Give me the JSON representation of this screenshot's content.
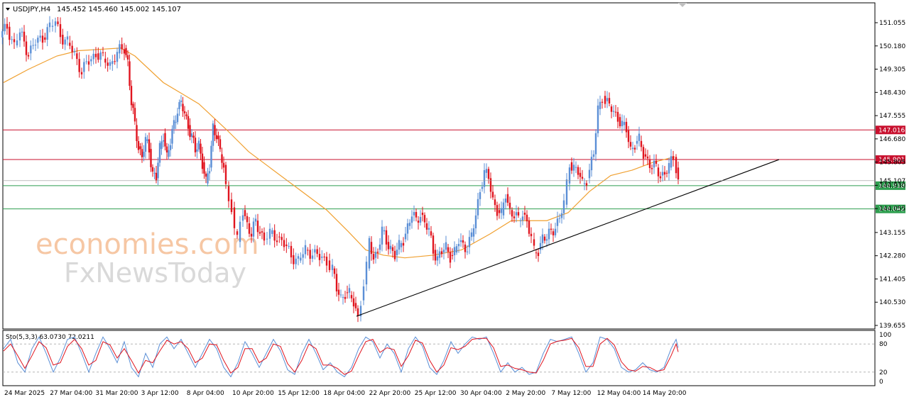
{
  "header": {
    "symbol": "USDJPY,H4",
    "ohlc": "145.452 145.460 145.002 145.107"
  },
  "watermark": {
    "line1": "economies.com",
    "line2": "FxNewsToday"
  },
  "price_axis_ticks": [
    "151.055",
    "150.180",
    "149.305",
    "148.430",
    "147.555",
    "146.680",
    "145.805",
    "144.930",
    "144.055",
    "143.155",
    "142.280",
    "141.405",
    "140.530",
    "139.655"
  ],
  "time_axis_ticks": [
    "24 Mar 2025",
    "27 Mar 04:00",
    "31 Mar 20:00",
    "3 Apr 12:00",
    "8 Apr 04:00",
    "10 Apr 20:00",
    "15 Apr 12:00",
    "18 Apr 04:00",
    "22 Apr 20:00",
    "25 Apr 12:00",
    "30 Apr 04:00",
    "2 May 20:00",
    "7 May 12:00",
    "12 May 04:00",
    "14 May 20:00"
  ],
  "levels": [
    {
      "label": "147.016",
      "value": 147.016,
      "color": "#c8102e"
    },
    {
      "label": "145.901",
      "value": 145.901,
      "color": "#c8102e"
    },
    {
      "label": "144.918",
      "value": 144.918,
      "color": "#2e9e4f"
    },
    {
      "label": "144.042",
      "value": 144.042,
      "color": "#2e9e4f"
    }
  ],
  "current_price": {
    "label": "145.107",
    "value": 145.107
  },
  "stochastic": {
    "label": "Sto(5,3,3) 63.0730 72.0211",
    "scale": [
      "100",
      "80",
      "20",
      "0"
    ]
  },
  "colors": {
    "bull": "#5b8fd6",
    "bear": "#e0141e",
    "ma": "#f0a030",
    "trend": "#000000",
    "k": "#5b8fd6",
    "d": "#e0141e"
  },
  "chart_data": {
    "type": "line",
    "title": "USDJPY,H4",
    "ylim": [
      139.655,
      151.6
    ],
    "close_path": [
      [
        0,
        150.5
      ],
      [
        10,
        150.9
      ],
      [
        20,
        150.2
      ],
      [
        28,
        150.7
      ],
      [
        40,
        149.9
      ],
      [
        50,
        150.3
      ],
      [
        60,
        150.5
      ],
      [
        70,
        150.9
      ],
      [
        78,
        151.1
      ],
      [
        85,
        150.6
      ],
      [
        95,
        150.3
      ],
      [
        105,
        149.9
      ],
      [
        115,
        149.2
      ],
      [
        125,
        149.6
      ],
      [
        135,
        149.9
      ],
      [
        145,
        149.7
      ],
      [
        155,
        149.5
      ],
      [
        165,
        149.9
      ],
      [
        175,
        150.1
      ],
      [
        180,
        149.6
      ],
      [
        185,
        148.0
      ],
      [
        190,
        147.2
      ],
      [
        195,
        146.4
      ],
      [
        200,
        146.0
      ],
      [
        205,
        146.6
      ],
      [
        210,
        146.3
      ],
      [
        215,
        145.4
      ],
      [
        220,
        145.2
      ],
      [
        225,
        146.3
      ],
      [
        230,
        146.9
      ],
      [
        235,
        146.0
      ],
      [
        240,
        146.5
      ],
      [
        245,
        147.3
      ],
      [
        250,
        147.8
      ],
      [
        255,
        148.0
      ],
      [
        260,
        147.6
      ],
      [
        265,
        147.2
      ],
      [
        270,
        146.8
      ],
      [
        275,
        146.2
      ],
      [
        280,
        146.5
      ],
      [
        285,
        145.8
      ],
      [
        290,
        145.0
      ],
      [
        295,
        145.6
      ],
      [
        300,
        147.2
      ],
      [
        305,
        146.8
      ],
      [
        310,
        146.1
      ],
      [
        315,
        145.7
      ],
      [
        318,
        144.9
      ],
      [
        322,
        144.4
      ],
      [
        326,
        144.1
      ],
      [
        330,
        143.2
      ],
      [
        334,
        142.8
      ],
      [
        338,
        143.6
      ],
      [
        342,
        144.0
      ],
      [
        348,
        143.5
      ],
      [
        354,
        143.0
      ],
      [
        360,
        143.6
      ],
      [
        366,
        143.2
      ],
      [
        372,
        142.9
      ],
      [
        380,
        143.1
      ],
      [
        390,
        143.0
      ],
      [
        400,
        142.7
      ],
      [
        410,
        142.3
      ],
      [
        420,
        142.1
      ],
      [
        430,
        142.5
      ],
      [
        440,
        142.4
      ],
      [
        450,
        142.2
      ],
      [
        460,
        142.1
      ],
      [
        468,
        141.8
      ],
      [
        474,
        141.0
      ],
      [
        480,
        140.7
      ],
      [
        486,
        140.9
      ],
      [
        492,
        140.8
      ],
      [
        498,
        140.5
      ],
      [
        504,
        140.0
      ],
      [
        508,
        140.6
      ],
      [
        512,
        141.2
      ],
      [
        516,
        141.8
      ],
      [
        520,
        142.8
      ],
      [
        526,
        142.2
      ],
      [
        532,
        142.5
      ],
      [
        538,
        143.2
      ],
      [
        544,
        142.8
      ],
      [
        550,
        142.6
      ],
      [
        556,
        142.3
      ],
      [
        562,
        142.6
      ],
      [
        568,
        142.9
      ],
      [
        574,
        143.4
      ],
      [
        580,
        143.8
      ],
      [
        586,
        143.6
      ],
      [
        592,
        143.9
      ],
      [
        598,
        143.5
      ],
      [
        604,
        143.2
      ],
      [
        610,
        142.5
      ],
      [
        616,
        142.2
      ],
      [
        622,
        142.4
      ],
      [
        628,
        142.6
      ],
      [
        634,
        142.3
      ],
      [
        640,
        142.4
      ],
      [
        646,
        142.8
      ],
      [
        652,
        142.7
      ],
      [
        658,
        142.6
      ],
      [
        664,
        143.0
      ],
      [
        670,
        143.8
      ],
      [
        676,
        144.8
      ],
      [
        682,
        145.4
      ],
      [
        688,
        145.2
      ],
      [
        694,
        144.4
      ],
      [
        700,
        144.0
      ],
      [
        706,
        143.8
      ],
      [
        712,
        144.6
      ],
      [
        718,
        144.0
      ],
      [
        724,
        143.8
      ],
      [
        730,
        143.6
      ],
      [
        736,
        143.9
      ],
      [
        742,
        143.6
      ],
      [
        748,
        142.9
      ],
      [
        752,
        142.4
      ],
      [
        758,
        142.5
      ],
      [
        764,
        143.0
      ],
      [
        770,
        142.9
      ],
      [
        776,
        143.2
      ],
      [
        782,
        143.4
      ],
      [
        788,
        143.7
      ],
      [
        794,
        144.2
      ],
      [
        798,
        145.0
      ],
      [
        802,
        145.8
      ],
      [
        808,
        145.6
      ],
      [
        814,
        145.4
      ],
      [
        820,
        145.0
      ],
      [
        826,
        145.2
      ],
      [
        830,
        145.5
      ],
      [
        836,
        146.1
      ],
      [
        842,
        147.8
      ],
      [
        848,
        148.3
      ],
      [
        852,
        148.1
      ],
      [
        858,
        147.9
      ],
      [
        864,
        147.7
      ],
      [
        870,
        147.5
      ],
      [
        876,
        147.2
      ],
      [
        882,
        147.0
      ],
      [
        888,
        146.3
      ],
      [
        894,
        146.5
      ],
      [
        900,
        146.6
      ],
      [
        906,
        146.1
      ],
      [
        912,
        145.9
      ],
      [
        918,
        145.6
      ],
      [
        924,
        145.6
      ],
      [
        930,
        145.3
      ],
      [
        936,
        145.4
      ],
      [
        942,
        145.6
      ],
      [
        948,
        146.0
      ],
      [
        952,
        145.6
      ],
      [
        955,
        145.107
      ]
    ],
    "ma_path": [
      [
        5,
        148.8
      ],
      [
        40,
        149.3
      ],
      [
        80,
        149.8
      ],
      [
        110,
        150.0
      ],
      [
        170,
        150.1
      ],
      [
        190,
        149.8
      ],
      [
        230,
        148.8
      ],
      [
        280,
        148.0
      ],
      [
        320,
        147.0
      ],
      [
        350,
        146.2
      ],
      [
        380,
        145.6
      ],
      [
        420,
        144.8
      ],
      [
        460,
        144.0
      ],
      [
        490,
        143.2
      ],
      [
        515,
        142.5
      ],
      [
        540,
        142.3
      ],
      [
        570,
        142.2
      ],
      [
        610,
        142.3
      ],
      [
        650,
        142.5
      ],
      [
        690,
        143.1
      ],
      [
        720,
        143.6
      ],
      [
        745,
        143.6
      ],
      [
        770,
        143.6
      ],
      [
        800,
        143.9
      ],
      [
        830,
        144.7
      ],
      [
        860,
        145.3
      ],
      [
        890,
        145.5
      ],
      [
        920,
        145.8
      ],
      [
        950,
        146.0
      ]
    ],
    "trendline": [
      [
        502,
        140.0
      ],
      [
        1097,
        145.901
      ]
    ],
    "stoch_k": [
      [
        5,
        70
      ],
      [
        15,
        90
      ],
      [
        25,
        40
      ],
      [
        35,
        20
      ],
      [
        45,
        70
      ],
      [
        55,
        95
      ],
      [
        65,
        60
      ],
      [
        75,
        20
      ],
      [
        85,
        50
      ],
      [
        95,
        90
      ],
      [
        105,
        95
      ],
      [
        115,
        60
      ],
      [
        125,
        20
      ],
      [
        135,
        60
      ],
      [
        145,
        95
      ],
      [
        155,
        70
      ],
      [
        165,
        40
      ],
      [
        175,
        85
      ],
      [
        185,
        30
      ],
      [
        195,
        10
      ],
      [
        205,
        60
      ],
      [
        215,
        30
      ],
      [
        225,
        80
      ],
      [
        235,
        95
      ],
      [
        245,
        70
      ],
      [
        255,
        90
      ],
      [
        265,
        60
      ],
      [
        275,
        30
      ],
      [
        285,
        60
      ],
      [
        295,
        90
      ],
      [
        305,
        70
      ],
      [
        315,
        30
      ],
      [
        325,
        10
      ],
      [
        335,
        40
      ],
      [
        345,
        85
      ],
      [
        355,
        60
      ],
      [
        365,
        30
      ],
      [
        375,
        60
      ],
      [
        385,
        90
      ],
      [
        395,
        65
      ],
      [
        405,
        25
      ],
      [
        415,
        15
      ],
      [
        425,
        60
      ],
      [
        435,
        90
      ],
      [
        445,
        60
      ],
      [
        455,
        25
      ],
      [
        465,
        40
      ],
      [
        475,
        20
      ],
      [
        485,
        10
      ],
      [
        495,
        30
      ],
      [
        505,
        70
      ],
      [
        515,
        95
      ],
      [
        525,
        85
      ],
      [
        535,
        50
      ],
      [
        545,
        80
      ],
      [
        555,
        60
      ],
      [
        565,
        20
      ],
      [
        575,
        70
      ],
      [
        585,
        95
      ],
      [
        595,
        75
      ],
      [
        605,
        30
      ],
      [
        615,
        15
      ],
      [
        625,
        45
      ],
      [
        635,
        85
      ],
      [
        645,
        60
      ],
      [
        655,
        80
      ],
      [
        665,
        95
      ],
      [
        675,
        90
      ],
      [
        685,
        95
      ],
      [
        695,
        60
      ],
      [
        705,
        20
      ],
      [
        715,
        40
      ],
      [
        725,
        20
      ],
      [
        735,
        30
      ],
      [
        745,
        15
      ],
      [
        755,
        20
      ],
      [
        765,
        60
      ],
      [
        775,
        90
      ],
      [
        785,
        85
      ],
      [
        795,
        90
      ],
      [
        805,
        95
      ],
      [
        815,
        60
      ],
      [
        825,
        20
      ],
      [
        835,
        40
      ],
      [
        845,
        95
      ],
      [
        855,
        90
      ],
      [
        865,
        70
      ],
      [
        875,
        30
      ],
      [
        885,
        20
      ],
      [
        895,
        25
      ],
      [
        905,
        40
      ],
      [
        915,
        25
      ],
      [
        925,
        20
      ],
      [
        935,
        30
      ],
      [
        945,
        70
      ],
      [
        952,
        90
      ],
      [
        955,
        72
      ]
    ],
    "stoch_d": [
      [
        5,
        65
      ],
      [
        15,
        80
      ],
      [
        25,
        55
      ],
      [
        35,
        28
      ],
      [
        45,
        55
      ],
      [
        55,
        85
      ],
      [
        65,
        72
      ],
      [
        75,
        35
      ],
      [
        85,
        40
      ],
      [
        95,
        75
      ],
      [
        105,
        90
      ],
      [
        115,
        70
      ],
      [
        125,
        35
      ],
      [
        135,
        45
      ],
      [
        145,
        85
      ],
      [
        155,
        78
      ],
      [
        165,
        50
      ],
      [
        175,
        70
      ],
      [
        185,
        45
      ],
      [
        195,
        18
      ],
      [
        205,
        45
      ],
      [
        215,
        40
      ],
      [
        225,
        65
      ],
      [
        235,
        88
      ],
      [
        245,
        80
      ],
      [
        255,
        85
      ],
      [
        265,
        70
      ],
      [
        275,
        40
      ],
      [
        285,
        50
      ],
      [
        295,
        80
      ],
      [
        305,
        78
      ],
      [
        315,
        45
      ],
      [
        325,
        18
      ],
      [
        335,
        30
      ],
      [
        345,
        70
      ],
      [
        355,
        70
      ],
      [
        365,
        40
      ],
      [
        375,
        50
      ],
      [
        385,
        80
      ],
      [
        395,
        75
      ],
      [
        405,
        38
      ],
      [
        415,
        20
      ],
      [
        425,
        45
      ],
      [
        435,
        80
      ],
      [
        445,
        70
      ],
      [
        455,
        35
      ],
      [
        465,
        35
      ],
      [
        475,
        28
      ],
      [
        485,
        15
      ],
      [
        495,
        22
      ],
      [
        505,
        55
      ],
      [
        515,
        85
      ],
      [
        525,
        90
      ],
      [
        535,
        62
      ],
      [
        545,
        72
      ],
      [
        555,
        68
      ],
      [
        565,
        32
      ],
      [
        575,
        55
      ],
      [
        585,
        88
      ],
      [
        595,
        82
      ],
      [
        605,
        45
      ],
      [
        615,
        20
      ],
      [
        625,
        35
      ],
      [
        635,
        72
      ],
      [
        645,
        68
      ],
      [
        655,
        75
      ],
      [
        665,
        90
      ],
      [
        675,
        92
      ],
      [
        685,
        92
      ],
      [
        695,
        72
      ],
      [
        705,
        32
      ],
      [
        715,
        35
      ],
      [
        725,
        28
      ],
      [
        735,
        25
      ],
      [
        745,
        20
      ],
      [
        755,
        18
      ],
      [
        765,
        45
      ],
      [
        775,
        80
      ],
      [
        785,
        86
      ],
      [
        795,
        88
      ],
      [
        805,
        92
      ],
      [
        815,
        72
      ],
      [
        825,
        32
      ],
      [
        835,
        32
      ],
      [
        845,
        80
      ],
      [
        855,
        92
      ],
      [
        865,
        78
      ],
      [
        875,
        42
      ],
      [
        885,
        25
      ],
      [
        895,
        22
      ],
      [
        905,
        32
      ],
      [
        915,
        30
      ],
      [
        925,
        22
      ],
      [
        935,
        25
      ],
      [
        945,
        55
      ],
      [
        952,
        80
      ],
      [
        955,
        63
      ]
    ]
  }
}
